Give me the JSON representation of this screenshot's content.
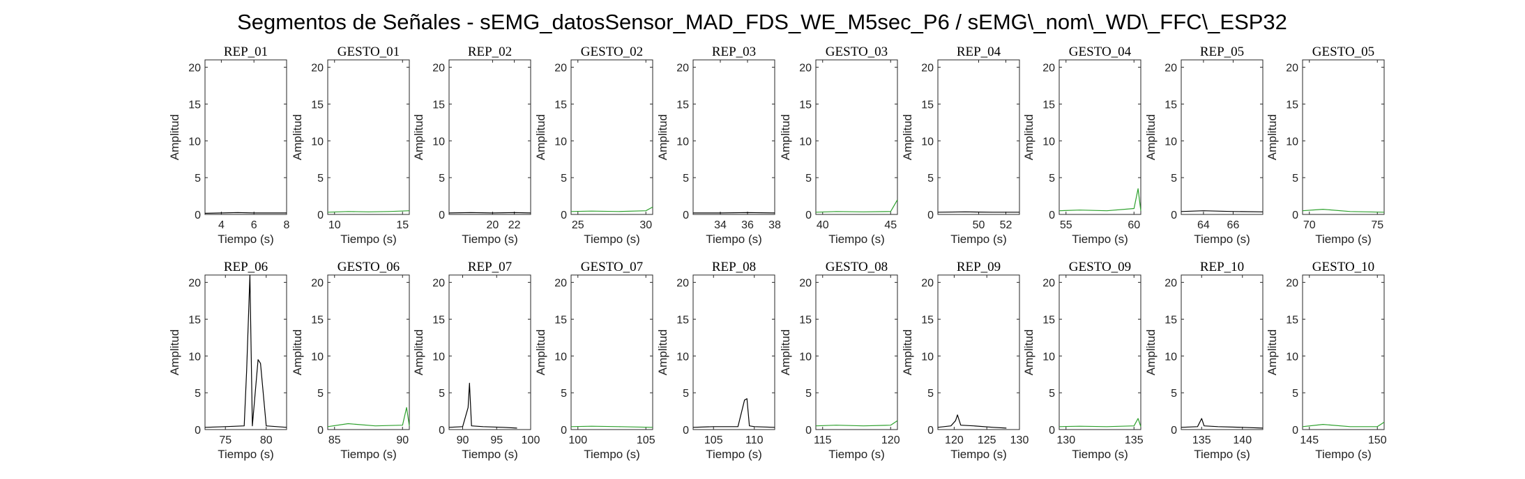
{
  "figure": {
    "title": "Segmentos de Señales - sEMG_datosSensor_MAD_FDS_WE_M5sec_P6 / sEMG\\_nom\\_WD\\_FFC\\_ESP32"
  },
  "colors": {
    "rep": "#000000",
    "gesto": "#2ca02c"
  },
  "chart_data": [
    {
      "type": "line",
      "title": "REP_01",
      "xlabel": "Tiempo (s)",
      "ylabel": "Amplitud",
      "xlim": [
        3,
        8
      ],
      "ylim": [
        0,
        21
      ],
      "xticks": [
        4,
        6,
        8
      ],
      "yticks": [
        0,
        5,
        10,
        15,
        20
      ],
      "color": "rep",
      "x": [
        3.0,
        4.0,
        5.0,
        6.0,
        7.0,
        8.0
      ],
      "y": [
        0.15,
        0.2,
        0.25,
        0.2,
        0.2,
        0.2
      ]
    },
    {
      "type": "line",
      "title": "GESTO_01",
      "xlabel": "Tiempo (s)",
      "ylabel": "Amplitud",
      "xlim": [
        9.5,
        15.5
      ],
      "ylim": [
        0,
        21
      ],
      "xticks": [
        10,
        15
      ],
      "yticks": [
        0,
        5,
        10,
        15,
        20
      ],
      "color": "gesto",
      "x": [
        9.5,
        11.0,
        12.5,
        14.0,
        15.5
      ],
      "y": [
        0.3,
        0.4,
        0.35,
        0.4,
        0.5
      ]
    },
    {
      "type": "line",
      "title": "REP_02",
      "xlabel": "Tiempo (s)",
      "ylabel": "Amplitud",
      "xlim": [
        16,
        23.5
      ],
      "ylim": [
        0,
        21
      ],
      "xticks": [
        20,
        22
      ],
      "yticks": [
        0,
        5,
        10,
        15,
        20
      ],
      "color": "rep",
      "x": [
        16.0,
        18.0,
        20.0,
        22.0,
        23.5
      ],
      "y": [
        0.2,
        0.25,
        0.2,
        0.25,
        0.2
      ]
    },
    {
      "type": "line",
      "title": "GESTO_02",
      "xlabel": "Tiempo (s)",
      "ylabel": "Amplitud",
      "xlim": [
        24.5,
        30.5
      ],
      "ylim": [
        0,
        21
      ],
      "xticks": [
        25,
        30
      ],
      "yticks": [
        0,
        5,
        10,
        15,
        20
      ],
      "color": "gesto",
      "x": [
        24.5,
        26.0,
        28.0,
        30.0,
        30.5
      ],
      "y": [
        0.4,
        0.45,
        0.4,
        0.5,
        1.0
      ]
    },
    {
      "type": "line",
      "title": "REP_03",
      "xlabel": "Tiempo (s)",
      "ylabel": "Amplitud",
      "xlim": [
        32,
        38
      ],
      "ylim": [
        0,
        21
      ],
      "xticks": [
        34,
        36,
        38
      ],
      "yticks": [
        0,
        5,
        10,
        15,
        20
      ],
      "color": "rep",
      "x": [
        32.0,
        34.0,
        36.0,
        38.0
      ],
      "y": [
        0.2,
        0.2,
        0.25,
        0.2
      ]
    },
    {
      "type": "line",
      "title": "GESTO_03",
      "xlabel": "Tiempo (s)",
      "ylabel": "Amplitud",
      "xlim": [
        39.5,
        45.5
      ],
      "ylim": [
        0,
        21
      ],
      "xticks": [
        40,
        45
      ],
      "yticks": [
        0,
        5,
        10,
        15,
        20
      ],
      "color": "gesto",
      "x": [
        39.5,
        41.0,
        43.0,
        45.0,
        45.5
      ],
      "y": [
        0.3,
        0.4,
        0.35,
        0.4,
        2.0
      ]
    },
    {
      "type": "line",
      "title": "REP_04",
      "xlabel": "Tiempo (s)",
      "ylabel": "Amplitud",
      "xlim": [
        47,
        53
      ],
      "ylim": [
        0,
        21
      ],
      "xticks": [
        50,
        52
      ],
      "yticks": [
        0,
        5,
        10,
        15,
        20
      ],
      "color": "rep",
      "x": [
        47.0,
        49.0,
        51.0,
        53.0
      ],
      "y": [
        0.3,
        0.35,
        0.3,
        0.3
      ]
    },
    {
      "type": "line",
      "title": "GESTO_04",
      "xlabel": "Tiempo (s)",
      "ylabel": "Amplitud",
      "xlim": [
        54.5,
        60.5
      ],
      "ylim": [
        0,
        21
      ],
      "xticks": [
        55,
        60
      ],
      "yticks": [
        0,
        5,
        10,
        15,
        20
      ],
      "color": "gesto",
      "x": [
        54.5,
        56.0,
        58.0,
        60.0,
        60.3,
        60.5
      ],
      "y": [
        0.5,
        0.6,
        0.5,
        0.8,
        3.5,
        0.5
      ]
    },
    {
      "type": "line",
      "title": "REP_05",
      "xlabel": "Tiempo (s)",
      "ylabel": "Amplitud",
      "xlim": [
        62.5,
        68
      ],
      "ylim": [
        0,
        21
      ],
      "xticks": [
        64,
        66
      ],
      "yticks": [
        0,
        5,
        10,
        15,
        20
      ],
      "color": "rep",
      "x": [
        62.5,
        64.0,
        66.0,
        68.0
      ],
      "y": [
        0.4,
        0.5,
        0.4,
        0.35
      ]
    },
    {
      "type": "line",
      "title": "GESTO_05",
      "xlabel": "Tiempo (s)",
      "ylabel": "Amplitud",
      "xlim": [
        69.5,
        75.5
      ],
      "ylim": [
        0,
        21
      ],
      "xticks": [
        70,
        75
      ],
      "yticks": [
        0,
        5,
        10,
        15,
        20
      ],
      "color": "gesto",
      "x": [
        69.5,
        71.0,
        73.0,
        75.5
      ],
      "y": [
        0.5,
        0.7,
        0.4,
        0.3
      ]
    },
    {
      "type": "line",
      "title": "REP_06",
      "xlabel": "Tiempo (s)",
      "ylabel": "Amplitud",
      "xlim": [
        72.5,
        82.5
      ],
      "ylim": [
        0,
        21
      ],
      "xticks": [
        75,
        80
      ],
      "yticks": [
        0,
        5,
        10,
        15,
        20
      ],
      "color": "rep",
      "x": [
        72.5,
        75.0,
        77.3,
        77.6,
        78.0,
        78.3,
        79.0,
        79.3,
        80.0,
        82.5
      ],
      "y": [
        0.3,
        0.4,
        0.5,
        8.0,
        21.0,
        0.5,
        9.5,
        9.0,
        0.5,
        0.3
      ]
    },
    {
      "type": "line",
      "title": "GESTO_06",
      "xlabel": "Tiempo (s)",
      "ylabel": "Amplitud",
      "xlim": [
        84.5,
        90.5
      ],
      "ylim": [
        0,
        21
      ],
      "xticks": [
        85,
        90
      ],
      "yticks": [
        0,
        5,
        10,
        15,
        20
      ],
      "color": "gesto",
      "x": [
        84.5,
        86.0,
        88.0,
        90.0,
        90.3,
        90.5
      ],
      "y": [
        0.4,
        0.8,
        0.5,
        0.6,
        3.0,
        0.5
      ]
    },
    {
      "type": "line",
      "title": "REP_07",
      "xlabel": "Tiempo (s)",
      "ylabel": "Amplitud",
      "xlim": [
        88,
        100
      ],
      "ylim": [
        0,
        21
      ],
      "xticks": [
        90,
        95,
        100
      ],
      "yticks": [
        0,
        5,
        10,
        15,
        20
      ],
      "color": "rep",
      "x": [
        88.0,
        90.0,
        90.8,
        91.0,
        91.3,
        93.0,
        96.0,
        98.0
      ],
      "y": [
        0.3,
        0.4,
        3.0,
        6.3,
        0.5,
        0.4,
        0.3,
        0.2
      ]
    },
    {
      "type": "line",
      "title": "GESTO_07",
      "xlabel": "Tiempo (s)",
      "ylabel": "Amplitud",
      "xlim": [
        99.5,
        105.5
      ],
      "ylim": [
        0,
        21
      ],
      "xticks": [
        100,
        105
      ],
      "yticks": [
        0,
        5,
        10,
        15,
        20
      ],
      "color": "gesto",
      "x": [
        99.5,
        101.0,
        103.0,
        105.5
      ],
      "y": [
        0.4,
        0.45,
        0.4,
        0.3
      ]
    },
    {
      "type": "line",
      "title": "REP_08",
      "xlabel": "Tiempo (s)",
      "ylabel": "Amplitud",
      "xlim": [
        102.5,
        112.5
      ],
      "ylim": [
        0,
        21
      ],
      "xticks": [
        105,
        110
      ],
      "yticks": [
        0,
        5,
        10,
        15,
        20
      ],
      "color": "rep",
      "x": [
        102.5,
        105.0,
        108.0,
        108.8,
        109.1,
        109.4,
        110.0,
        112.5
      ],
      "y": [
        0.3,
        0.4,
        0.4,
        4.0,
        4.2,
        0.5,
        0.4,
        0.3
      ]
    },
    {
      "type": "line",
      "title": "GESTO_08",
      "xlabel": "Tiempo (s)",
      "ylabel": "Amplitud",
      "xlim": [
        114.5,
        120.5
      ],
      "ylim": [
        0,
        21
      ],
      "xticks": [
        115,
        120
      ],
      "yticks": [
        0,
        5,
        10,
        15,
        20
      ],
      "color": "gesto",
      "x": [
        114.5,
        116.0,
        118.0,
        120.0,
        120.5
      ],
      "y": [
        0.5,
        0.6,
        0.5,
        0.6,
        1.2
      ]
    },
    {
      "type": "line",
      "title": "REP_09",
      "xlabel": "Tiempo (s)",
      "ylabel": "Amplitud",
      "xlim": [
        117.5,
        130
      ],
      "ylim": [
        0,
        21
      ],
      "xticks": [
        120,
        125,
        130
      ],
      "yticks": [
        0,
        5,
        10,
        15,
        20
      ],
      "color": "rep",
      "x": [
        117.5,
        119.5,
        120.2,
        120.5,
        121.0,
        123.0,
        126.0,
        128.0
      ],
      "y": [
        0.3,
        0.5,
        1.2,
        2.0,
        0.6,
        0.5,
        0.3,
        0.2
      ]
    },
    {
      "type": "line",
      "title": "GESTO_09",
      "xlabel": "Tiempo (s)",
      "ylabel": "Amplitud",
      "xlim": [
        129.5,
        135.5
      ],
      "ylim": [
        0,
        21
      ],
      "xticks": [
        130,
        135
      ],
      "yticks": [
        0,
        5,
        10,
        15,
        20
      ],
      "color": "gesto",
      "x": [
        129.5,
        131.0,
        133.0,
        135.0,
        135.3,
        135.5
      ],
      "y": [
        0.4,
        0.45,
        0.4,
        0.5,
        1.5,
        0.4
      ]
    },
    {
      "type": "line",
      "title": "REP_10",
      "xlabel": "Tiempo (s)",
      "ylabel": "Amplitud",
      "xlim": [
        132.5,
        142.5
      ],
      "ylim": [
        0,
        21
      ],
      "xticks": [
        135,
        140
      ],
      "yticks": [
        0,
        5,
        10,
        15,
        20
      ],
      "color": "rep",
      "x": [
        132.5,
        134.5,
        135.0,
        135.3,
        137.0,
        140.0,
        142.5
      ],
      "y": [
        0.3,
        0.4,
        1.5,
        0.5,
        0.4,
        0.3,
        0.2
      ]
    },
    {
      "type": "line",
      "title": "GESTO_10",
      "xlabel": "Tiempo (s)",
      "ylabel": "Amplitud",
      "xlim": [
        144.5,
        150.5
      ],
      "ylim": [
        0,
        21
      ],
      "xticks": [
        145,
        150
      ],
      "yticks": [
        0,
        5,
        10,
        15,
        20
      ],
      "color": "gesto",
      "x": [
        144.5,
        146.0,
        148.0,
        150.0,
        150.5
      ],
      "y": [
        0.4,
        0.7,
        0.4,
        0.4,
        1.0
      ]
    }
  ]
}
